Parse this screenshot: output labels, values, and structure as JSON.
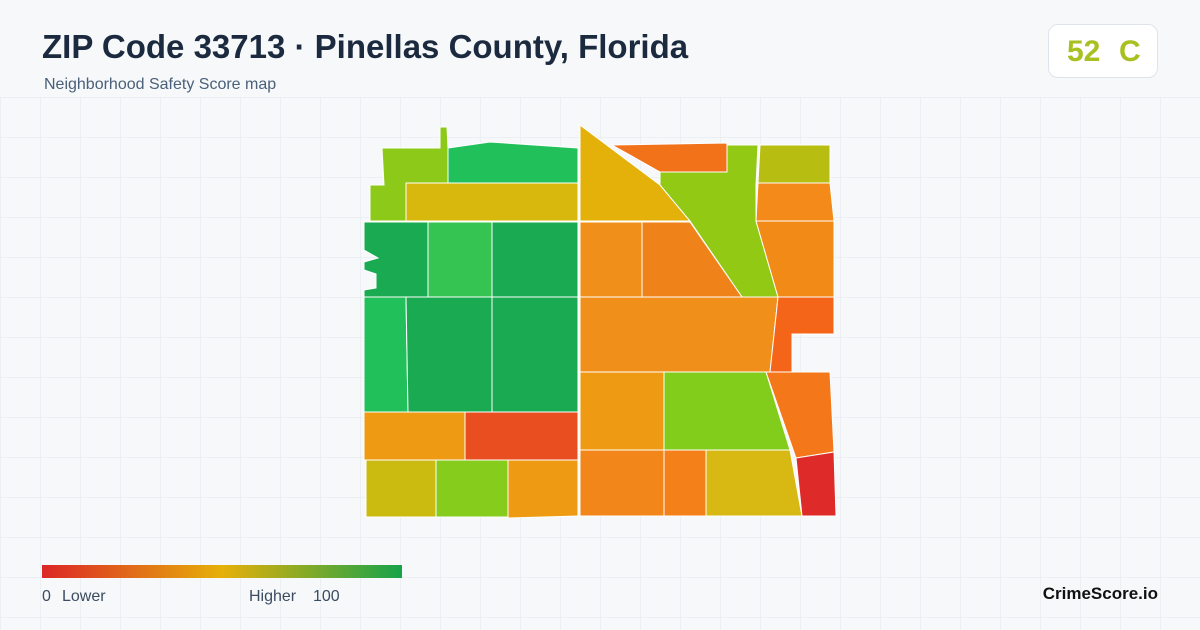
{
  "header": {
    "title": "ZIP Code 33713 · Pinellas County, Florida",
    "subtitle": "Neighborhood Safety Score map"
  },
  "badge": {
    "score": "52",
    "grade": "C"
  },
  "legend": {
    "min": "0",
    "min_label": "Lower",
    "max_label": "Higher",
    "max": "100"
  },
  "footer": {
    "brand": "CrimeScore.io"
  }
}
